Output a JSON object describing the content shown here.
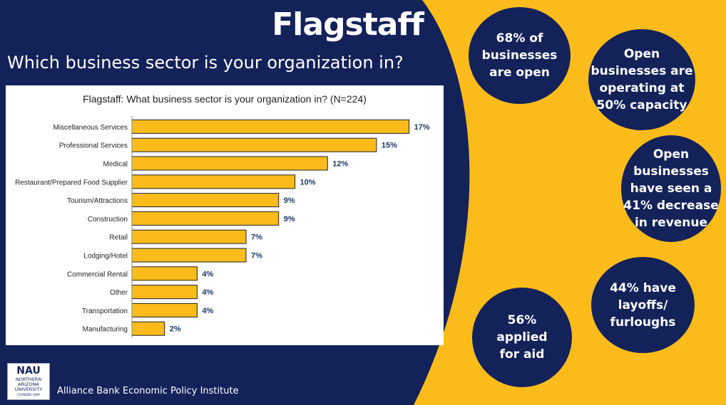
{
  "page": {
    "title": "Flagstaff",
    "subtitle": "Which business sector is your organization in?",
    "footer": "Alliance Bank Economic Policy Institute"
  },
  "logo": {
    "line1": "NAU",
    "line2": "NORTHERN",
    "line3": "ARIZONA",
    "line4": "UNIVERSITY",
    "line5": "FOUNDED 1899"
  },
  "stats": [
    {
      "lines": [
        "68% of",
        "businesses",
        "are open"
      ]
    },
    {
      "lines": [
        "Open",
        "businesses are",
        "operating at",
        "50% capacity"
      ]
    },
    {
      "lines": [
        "Open",
        "businesses",
        "have seen a",
        "41% decrease",
        "in revenue"
      ]
    },
    {
      "lines": [
        "44% have",
        "layoffs/",
        "furloughs"
      ]
    },
    {
      "lines": [
        "56%",
        "applied",
        "for aid"
      ]
    }
  ],
  "colors": {
    "navy": "#14225a",
    "gold": "#fbbc1b",
    "bar_fill": "#fbbc1b",
    "bar_border": "#222222",
    "label_color": "#1f3864"
  },
  "chart_data": {
    "type": "bar",
    "orientation": "horizontal",
    "title": "Flagstaff: What business sector is your organization in? (N=224)",
    "categories": [
      "Miscellaneous Services",
      "Professional Services",
      "Medical",
      "Restaurant/Prepared Food Supplier",
      "Tourism/Attractions",
      "Construction",
      "Retail",
      "Lodging/Hotel",
      "Commercial Rental",
      "Other",
      "Transportation",
      "Manufacturing"
    ],
    "values": [
      17,
      15,
      12,
      10,
      9,
      9,
      7,
      7,
      4,
      4,
      4,
      2
    ],
    "value_labels": [
      "17%",
      "15%",
      "12%",
      "10%",
      "9%",
      "9%",
      "7%",
      "7%",
      "4%",
      "4%",
      "4%",
      "2%"
    ],
    "unit": "%",
    "xlim": [
      0,
      17.5
    ],
    "grid": false,
    "legend": "none"
  }
}
